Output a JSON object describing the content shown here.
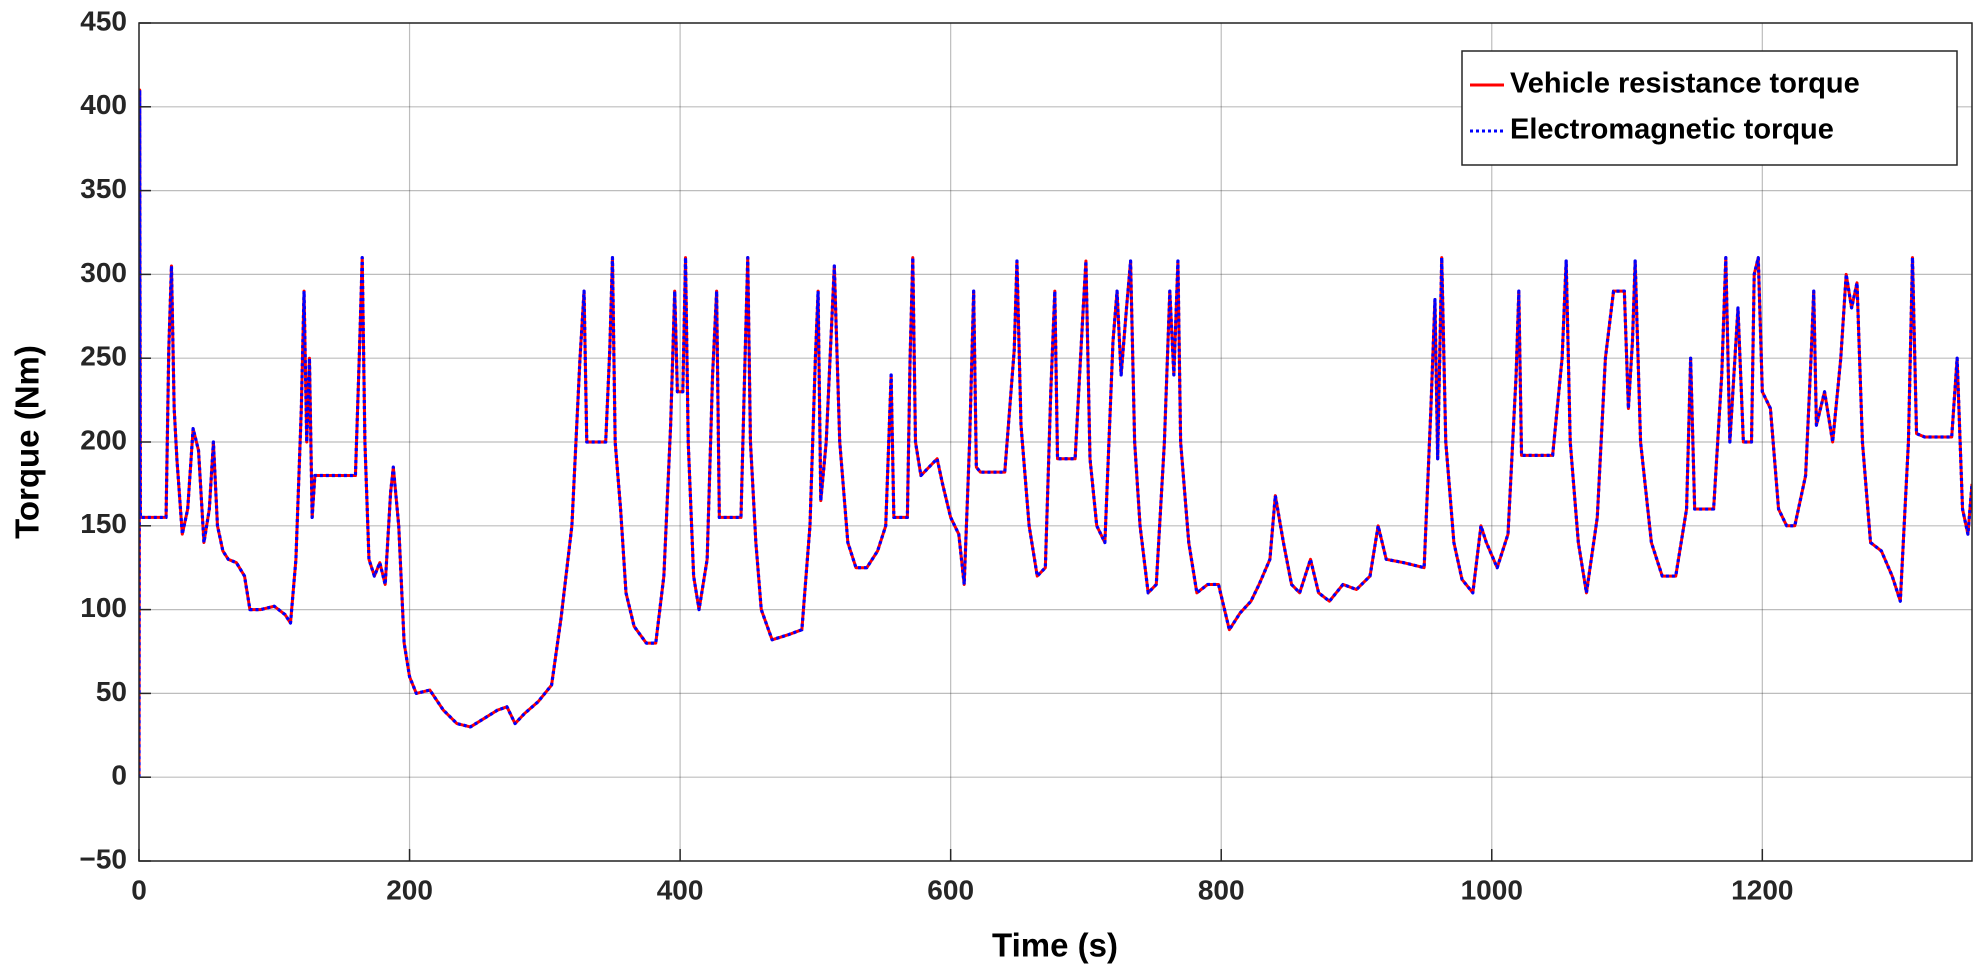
{
  "chart_data": {
    "type": "line",
    "x_label": "Time (s)",
    "y_label": "Torque (Nm)",
    "xlim": [
      0,
      1355
    ],
    "ylim": [
      -50,
      450
    ],
    "xticks": [
      0,
      200,
      400,
      600,
      800,
      1000,
      1200
    ],
    "yticks": [
      {
        "value": -50,
        "label": "−50"
      },
      0,
      50,
      100,
      150,
      200,
      250,
      300,
      350,
      400,
      450
    ],
    "grid": true,
    "legend": "upper right",
    "x": [
      0,
      0.5,
      1,
      20,
      22,
      24,
      26,
      28,
      32,
      36,
      40,
      44,
      48,
      52,
      55,
      58,
      62,
      66,
      72,
      78,
      82,
      90,
      100,
      108,
      112,
      116,
      120,
      122,
      124,
      126,
      128,
      130,
      160,
      163,
      165,
      167,
      170,
      174,
      178,
      182,
      186,
      188,
      192,
      196,
      200,
      205,
      215,
      225,
      235,
      245,
      255,
      265,
      272,
      278,
      285,
      295,
      305,
      312,
      320,
      326,
      329,
      331,
      336,
      345,
      348,
      350,
      352,
      356,
      360,
      366,
      375,
      382,
      388,
      393,
      396,
      398,
      402,
      404,
      406,
      410,
      414,
      420,
      424,
      427,
      429,
      432,
      445,
      448,
      450,
      452,
      456,
      460,
      468,
      480,
      490,
      496,
      500,
      502,
      504,
      508,
      512,
      514,
      518,
      524,
      530,
      538,
      546,
      552,
      556,
      558,
      560,
      568,
      570,
      572,
      574,
      578,
      584,
      590,
      594,
      600,
      606,
      610,
      614,
      617,
      619,
      622,
      640,
      647,
      649,
      652,
      658,
      664,
      670,
      674,
      677,
      679,
      692,
      698,
      700,
      703,
      708,
      714,
      720,
      723,
      726,
      730,
      733,
      736,
      740,
      746,
      752,
      758,
      762,
      765,
      768,
      770,
      776,
      782,
      790,
      798,
      806,
      814,
      822,
      828,
      836,
      840,
      846,
      852,
      858,
      866,
      872,
      880,
      890,
      900,
      910,
      916,
      922,
      935,
      950,
      955,
      958,
      960,
      963,
      966,
      972,
      978,
      986,
      992,
      996,
      1004,
      1012,
      1018,
      1020,
      1022,
      1045,
      1052,
      1055,
      1058,
      1064,
      1070,
      1078,
      1084,
      1090,
      1098,
      1101,
      1104,
      1106,
      1110,
      1118,
      1126,
      1136,
      1144,
      1147,
      1150,
      1164,
      1170,
      1173,
      1176,
      1182,
      1186,
      1192,
      1194,
      1197,
      1200,
      1206,
      1212,
      1218,
      1224,
      1232,
      1236,
      1238,
      1240,
      1246,
      1252,
      1258,
      1262,
      1266,
      1270,
      1274,
      1280,
      1288,
      1296,
      1302,
      1308,
      1311,
      1314,
      1320,
      1340,
      1344,
      1348,
      1352,
      1355
    ],
    "series": [
      {
        "name": "Vehicle resistance torque",
        "color": "#ff0000",
        "style": "solid",
        "values": [
          0,
          410,
          155,
          155,
          255,
          305,
          220,
          190,
          145,
          160,
          208,
          195,
          140,
          160,
          200,
          150,
          135,
          130,
          128,
          120,
          100,
          100,
          102,
          97,
          92,
          130,
          220,
          290,
          200,
          250,
          155,
          180,
          180,
          255,
          310,
          200,
          130,
          120,
          128,
          115,
          170,
          185,
          150,
          80,
          60,
          50,
          52,
          40,
          32,
          30,
          35,
          40,
          42,
          32,
          38,
          45,
          55,
          95,
          150,
          250,
          290,
          200,
          200,
          200,
          255,
          310,
          200,
          160,
          110,
          90,
          80,
          80,
          120,
          210,
          290,
          230,
          230,
          310,
          200,
          120,
          100,
          130,
          240,
          290,
          155,
          155,
          155,
          250,
          310,
          200,
          140,
          100,
          82,
          85,
          88,
          150,
          250,
          290,
          165,
          200,
          270,
          305,
          200,
          140,
          125,
          125,
          135,
          150,
          240,
          155,
          155,
          155,
          250,
          310,
          200,
          180,
          185,
          190,
          175,
          155,
          145,
          115,
          200,
          290,
          185,
          182,
          182,
          255,
          308,
          210,
          150,
          120,
          125,
          230,
          290,
          190,
          190,
          280,
          308,
          190,
          150,
          140,
          260,
          290,
          240,
          280,
          308,
          200,
          150,
          110,
          115,
          200,
          290,
          240,
          308,
          200,
          140,
          110,
          115,
          115,
          88,
          98,
          105,
          115,
          130,
          168,
          140,
          115,
          110,
          130,
          110,
          105,
          115,
          112,
          120,
          150,
          130,
          128,
          125,
          220,
          285,
          190,
          310,
          200,
          140,
          118,
          110,
          150,
          140,
          125,
          145,
          240,
          290,
          192,
          192,
          250,
          308,
          200,
          140,
          110,
          155,
          250,
          290,
          290,
          220,
          260,
          308,
          200,
          140,
          120,
          120,
          160,
          250,
          160,
          160,
          240,
          310,
          200,
          280,
          200,
          200,
          300,
          310,
          230,
          220,
          160,
          150,
          150,
          180,
          250,
          290,
          210,
          230,
          200,
          250,
          300,
          280,
          295,
          200,
          140,
          135,
          120,
          105,
          200,
          310,
          205,
          203,
          203,
          250,
          160,
          145,
          175
        ]
      },
      {
        "name": "Electromagnetic torque",
        "color": "#0000ff",
        "style": "dotted",
        "values": [
          0,
          410,
          155,
          155,
          255,
          305,
          220,
          190,
          145,
          160,
          208,
          195,
          140,
          160,
          200,
          150,
          135,
          130,
          128,
          120,
          100,
          100,
          102,
          97,
          92,
          130,
          220,
          290,
          200,
          250,
          155,
          180,
          180,
          255,
          310,
          200,
          130,
          120,
          128,
          115,
          170,
          185,
          150,
          80,
          60,
          50,
          52,
          40,
          32,
          30,
          35,
          40,
          42,
          32,
          38,
          45,
          55,
          95,
          150,
          250,
          290,
          200,
          200,
          200,
          255,
          310,
          200,
          160,
          110,
          90,
          80,
          80,
          120,
          210,
          290,
          230,
          230,
          310,
          200,
          120,
          100,
          130,
          240,
          290,
          155,
          155,
          155,
          250,
          310,
          200,
          140,
          100,
          82,
          85,
          88,
          150,
          250,
          290,
          165,
          200,
          270,
          305,
          200,
          140,
          125,
          125,
          135,
          150,
          240,
          155,
          155,
          155,
          250,
          310,
          200,
          180,
          185,
          190,
          175,
          155,
          145,
          115,
          200,
          290,
          185,
          182,
          182,
          255,
          308,
          210,
          150,
          120,
          125,
          230,
          290,
          190,
          190,
          280,
          308,
          190,
          150,
          140,
          260,
          290,
          240,
          280,
          308,
          200,
          150,
          110,
          115,
          200,
          290,
          240,
          308,
          200,
          140,
          110,
          115,
          115,
          88,
          98,
          105,
          115,
          130,
          168,
          140,
          115,
          110,
          130,
          110,
          105,
          115,
          112,
          120,
          150,
          130,
          128,
          125,
          220,
          285,
          190,
          310,
          200,
          140,
          118,
          110,
          150,
          140,
          125,
          145,
          240,
          290,
          192,
          192,
          250,
          308,
          200,
          140,
          110,
          155,
          250,
          290,
          290,
          220,
          260,
          308,
          200,
          140,
          120,
          120,
          160,
          250,
          160,
          160,
          240,
          310,
          200,
          280,
          200,
          200,
          300,
          310,
          230,
          220,
          160,
          150,
          150,
          180,
          250,
          290,
          210,
          230,
          200,
          250,
          300,
          280,
          295,
          200,
          140,
          135,
          120,
          105,
          200,
          310,
          205,
          203,
          203,
          250,
          160,
          145,
          175
        ]
      }
    ]
  }
}
